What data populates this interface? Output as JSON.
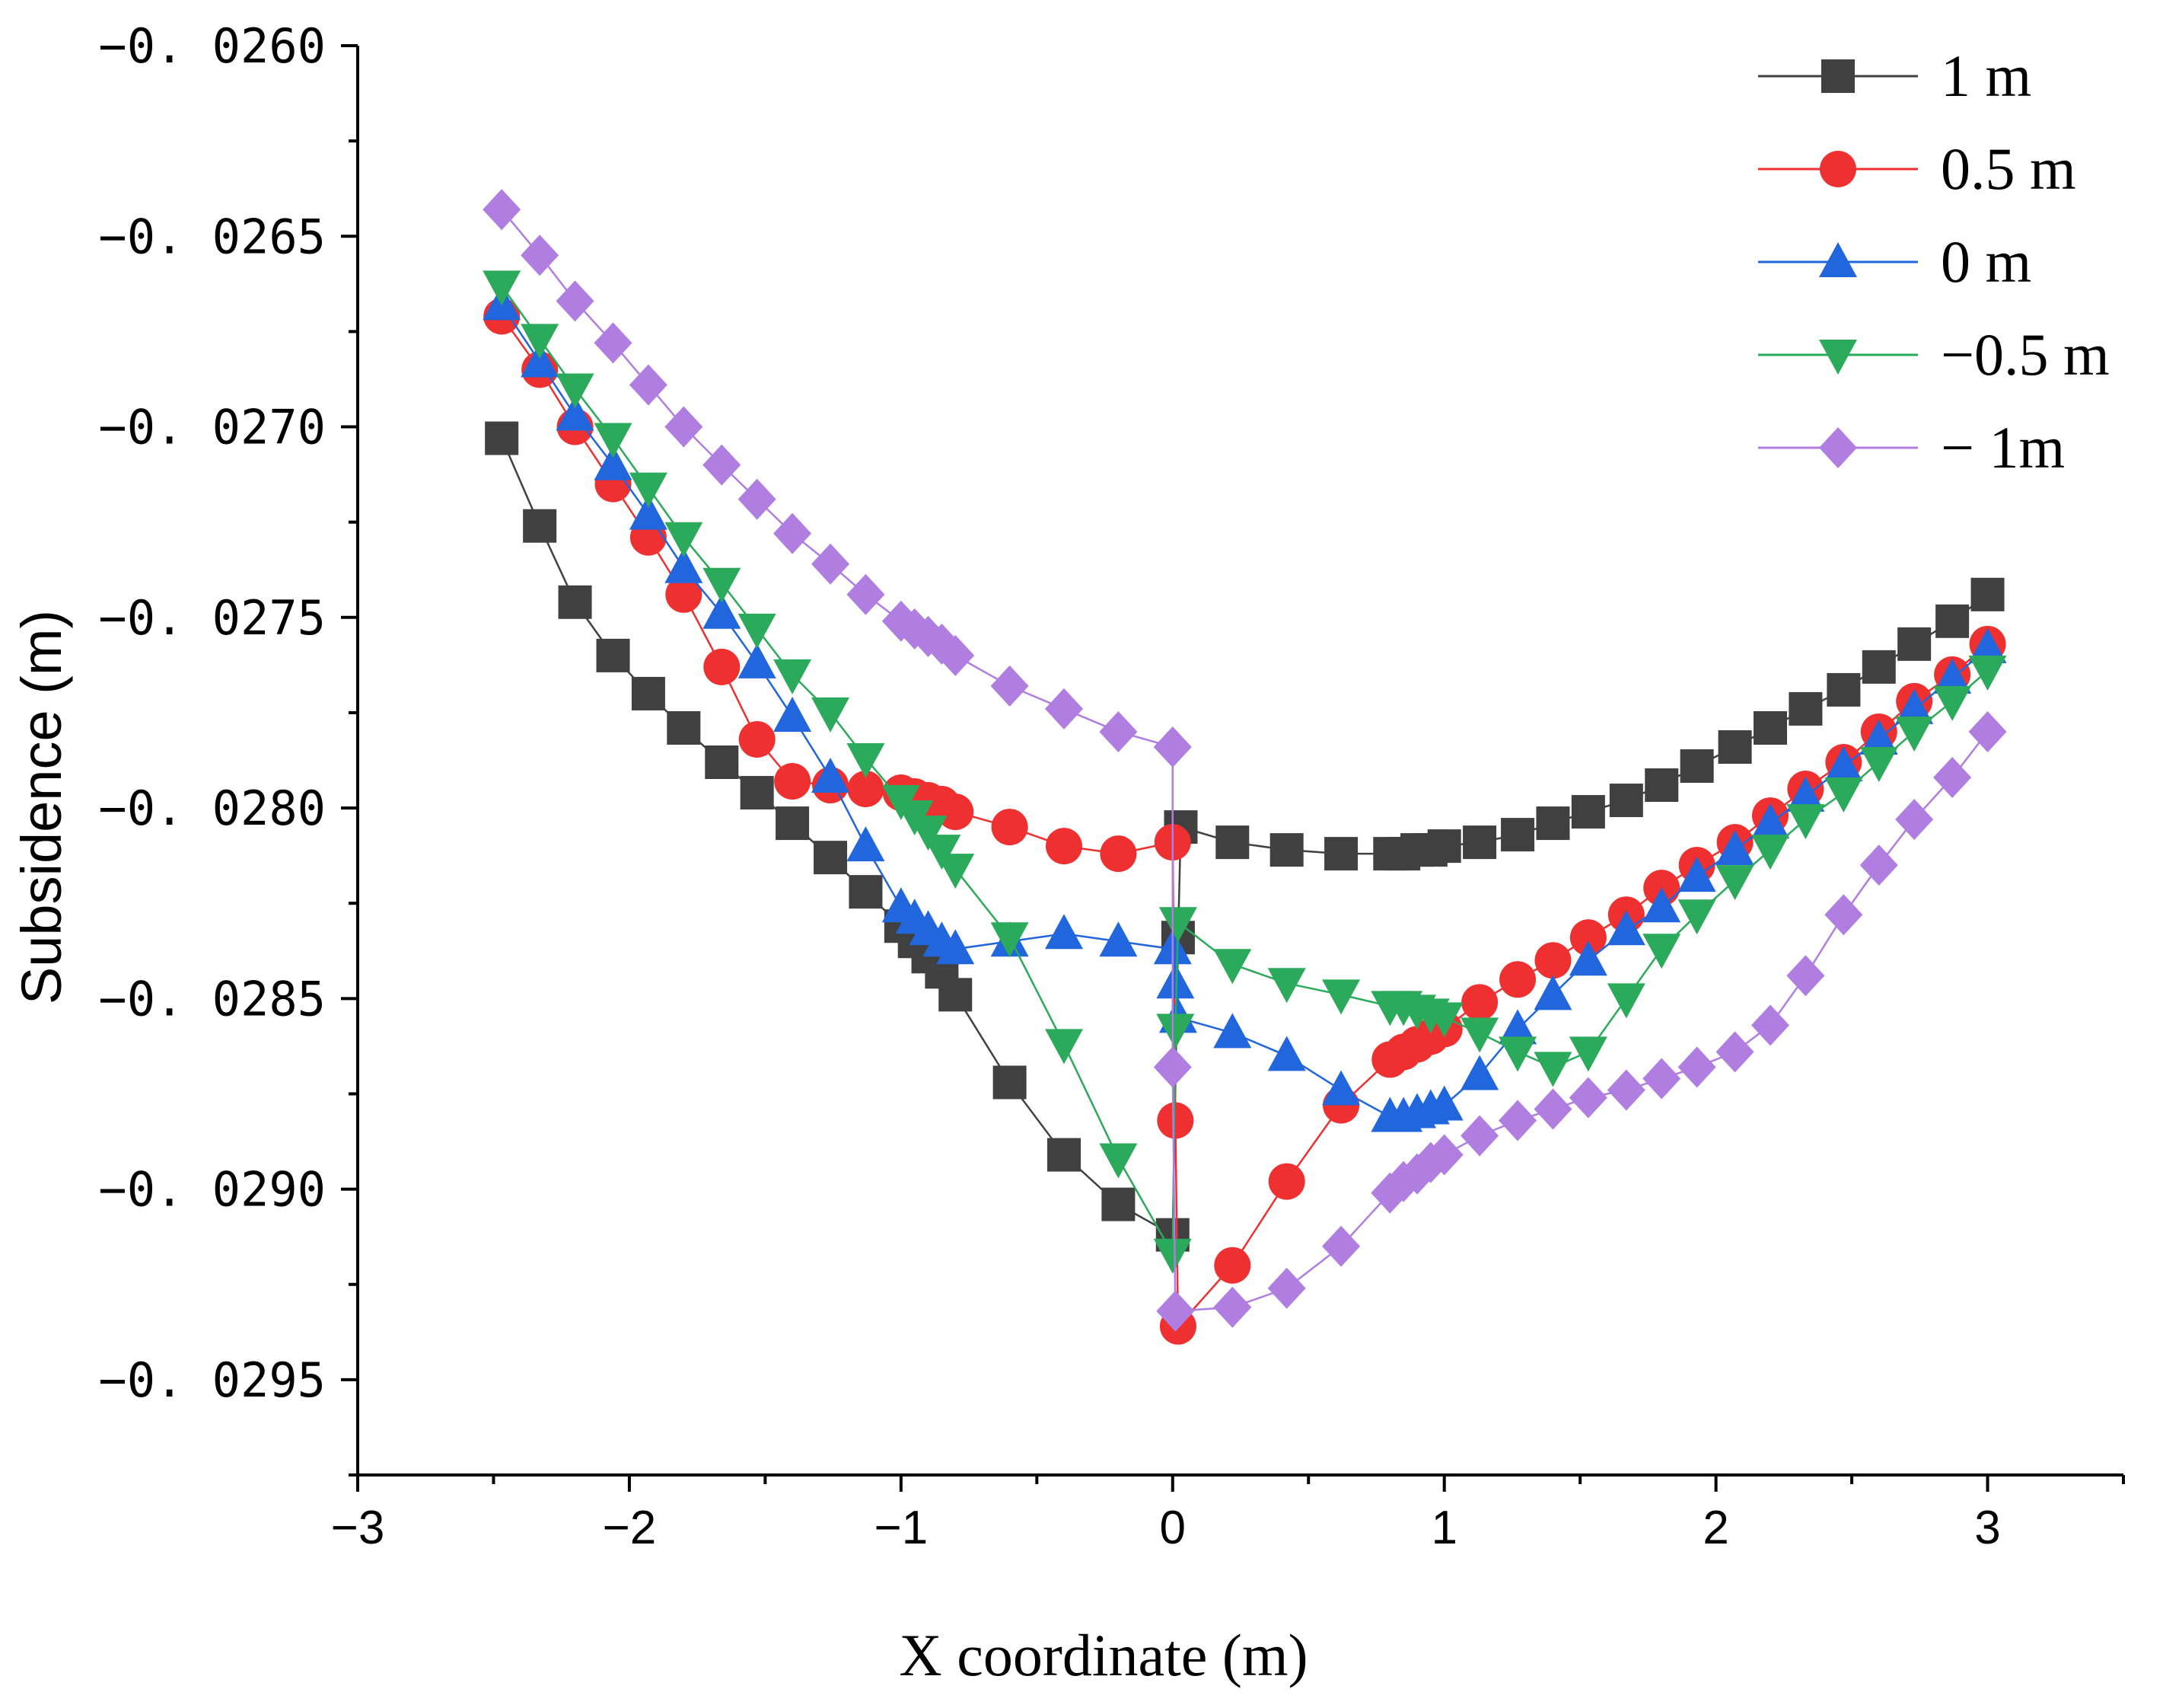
{
  "chart_data": {
    "type": "line",
    "title": "",
    "xlabel": "X coordinate (m)",
    "ylabel": "Subsidence (m)",
    "xlim": [
      -3,
      3.5
    ],
    "ylim": [
      -0.02975,
      -0.026
    ],
    "x_ticks": [
      -3,
      -2,
      -1,
      0,
      1,
      2,
      3
    ],
    "x_tick_labels": [
      "−3",
      "−2",
      "−1",
      "0",
      "1",
      "2",
      "3"
    ],
    "y_ticks": [
      -0.026,
      -0.0265,
      -0.027,
      -0.0275,
      -0.028,
      -0.0285,
      -0.029,
      -0.0295
    ],
    "y_tick_labels": [
      "−0. 0260",
      "−0. 0265",
      "−0. 0270",
      "−0. 0275",
      "−0. 0280",
      "−0. 0285",
      "−0. 0290",
      "−0. 0295"
    ],
    "grid": false,
    "legend_position": "top-right",
    "series": [
      {
        "name": "1 m",
        "color": "#404040",
        "marker": "square",
        "points": [
          [
            -2.47,
            -0.02703
          ],
          [
            -2.33,
            -0.02726
          ],
          [
            -2.2,
            -0.02746
          ],
          [
            -2.06,
            -0.0276
          ],
          [
            -1.93,
            -0.0277
          ],
          [
            -1.8,
            -0.02779
          ],
          [
            -1.66,
            -0.02788
          ],
          [
            -1.53,
            -0.02796
          ],
          [
            -1.4,
            -0.02804
          ],
          [
            -1.26,
            -0.02813
          ],
          [
            -1.13,
            -0.02822
          ],
          [
            -1.0,
            -0.02831
          ],
          [
            -0.95,
            -0.02835
          ],
          [
            -0.9,
            -0.02839
          ],
          [
            -0.85,
            -0.02843
          ],
          [
            -0.8,
            -0.02849
          ],
          [
            -0.6,
            -0.02872
          ],
          [
            -0.4,
            -0.02891
          ],
          [
            -0.2,
            -0.02904
          ],
          [
            0.0,
            -0.02912
          ],
          [
            0.02,
            -0.02834
          ],
          [
            0.03,
            -0.02805
          ],
          [
            0.22,
            -0.02809
          ],
          [
            0.42,
            -0.02811
          ],
          [
            0.62,
            -0.02812
          ],
          [
            0.8,
            -0.02812
          ],
          [
            0.85,
            -0.02812
          ],
          [
            0.9,
            -0.02811
          ],
          [
            0.95,
            -0.02811
          ],
          [
            1.0,
            -0.0281
          ],
          [
            1.13,
            -0.02809
          ],
          [
            1.27,
            -0.02807
          ],
          [
            1.4,
            -0.02804
          ],
          [
            1.53,
            -0.02801
          ],
          [
            1.67,
            -0.02798
          ],
          [
            1.8,
            -0.02794
          ],
          [
            1.93,
            -0.02789
          ],
          [
            2.07,
            -0.02784
          ],
          [
            2.2,
            -0.02779
          ],
          [
            2.33,
            -0.02774
          ],
          [
            2.47,
            -0.02769
          ],
          [
            2.6,
            -0.02763
          ],
          [
            2.73,
            -0.02757
          ],
          [
            2.87,
            -0.02751
          ],
          [
            3.0,
            -0.02744
          ]
        ]
      },
      {
        "name": "0.5 m",
        "color": "#ee3030",
        "marker": "circle",
        "points": [
          [
            -2.47,
            -0.02671
          ],
          [
            -2.33,
            -0.02685
          ],
          [
            -2.2,
            -0.027
          ],
          [
            -2.06,
            -0.02715
          ],
          [
            -1.93,
            -0.02729
          ],
          [
            -1.8,
            -0.02744
          ],
          [
            -1.66,
            -0.02763
          ],
          [
            -1.53,
            -0.02782
          ],
          [
            -1.4,
            -0.02793
          ],
          [
            -1.26,
            -0.02794
          ],
          [
            -1.13,
            -0.02795
          ],
          [
            -1.0,
            -0.02796
          ],
          [
            -0.95,
            -0.02797
          ],
          [
            -0.9,
            -0.02798
          ],
          [
            -0.85,
            -0.02799
          ],
          [
            -0.8,
            -0.02801
          ],
          [
            -0.6,
            -0.02805
          ],
          [
            -0.4,
            -0.0281
          ],
          [
            -0.2,
            -0.02812
          ],
          [
            0.0,
            -0.02809
          ],
          [
            0.01,
            -0.02882
          ],
          [
            0.02,
            -0.02936
          ],
          [
            0.22,
            -0.0292
          ],
          [
            0.42,
            -0.02898
          ],
          [
            0.62,
            -0.02878
          ],
          [
            0.8,
            -0.02866
          ],
          [
            0.85,
            -0.02864
          ],
          [
            0.9,
            -0.02862
          ],
          [
            0.95,
            -0.0286
          ],
          [
            1.0,
            -0.02858
          ],
          [
            1.13,
            -0.02851
          ],
          [
            1.27,
            -0.02845
          ],
          [
            1.4,
            -0.0284
          ],
          [
            1.53,
            -0.02834
          ],
          [
            1.67,
            -0.02828
          ],
          [
            1.8,
            -0.02821
          ],
          [
            1.93,
            -0.02815
          ],
          [
            2.07,
            -0.02809
          ],
          [
            2.2,
            -0.02802
          ],
          [
            2.33,
            -0.02795
          ],
          [
            2.47,
            -0.02788
          ],
          [
            2.6,
            -0.0278
          ],
          [
            2.73,
            -0.02772
          ],
          [
            2.87,
            -0.02765
          ],
          [
            3.0,
            -0.02757
          ]
        ]
      },
      {
        "name": "0 m",
        "color": "#2266dd",
        "marker": "triangle-up",
        "points": [
          [
            -2.47,
            -0.02668
          ],
          [
            -2.33,
            -0.02683
          ],
          [
            -2.2,
            -0.02697
          ],
          [
            -2.06,
            -0.0271
          ],
          [
            -1.93,
            -0.02723
          ],
          [
            -1.8,
            -0.02737
          ],
          [
            -1.66,
            -0.02749
          ],
          [
            -1.53,
            -0.02762
          ],
          [
            -1.4,
            -0.02776
          ],
          [
            -1.26,
            -0.02792
          ],
          [
            -1.13,
            -0.0281
          ],
          [
            -1.0,
            -0.02826
          ],
          [
            -0.95,
            -0.02829
          ],
          [
            -0.9,
            -0.02832
          ],
          [
            -0.85,
            -0.02835
          ],
          [
            -0.8,
            -0.02837
          ],
          [
            -0.6,
            -0.02835
          ],
          [
            -0.4,
            -0.02833
          ],
          [
            -0.2,
            -0.02835
          ],
          [
            0.0,
            -0.02837
          ],
          [
            0.01,
            -0.02846
          ],
          [
            0.02,
            -0.02855
          ],
          [
            0.22,
            -0.02859
          ],
          [
            0.42,
            -0.02865
          ],
          [
            0.62,
            -0.02874
          ],
          [
            0.8,
            -0.02881
          ],
          [
            0.85,
            -0.02881
          ],
          [
            0.9,
            -0.0288
          ],
          [
            0.95,
            -0.02879
          ],
          [
            1.0,
            -0.02878
          ],
          [
            1.13,
            -0.0287
          ],
          [
            1.27,
            -0.02858
          ],
          [
            1.4,
            -0.02849
          ],
          [
            1.53,
            -0.0284
          ],
          [
            1.67,
            -0.02832
          ],
          [
            1.8,
            -0.02826
          ],
          [
            1.93,
            -0.02818
          ],
          [
            2.07,
            -0.02811
          ],
          [
            2.2,
            -0.02804
          ],
          [
            2.33,
            -0.02797
          ],
          [
            2.47,
            -0.02789
          ],
          [
            2.6,
            -0.02782
          ],
          [
            2.73,
            -0.02774
          ],
          [
            2.87,
            -0.02766
          ],
          [
            3.0,
            -0.02758
          ]
        ]
      },
      {
        "name": "−0.5 m",
        "color": "#2aaa5a",
        "marker": "triangle-down",
        "points": [
          [
            -2.47,
            -0.02663
          ],
          [
            -2.33,
            -0.02677
          ],
          [
            -2.2,
            -0.0269
          ],
          [
            -2.06,
            -0.02703
          ],
          [
            -1.93,
            -0.02716
          ],
          [
            -1.8,
            -0.02729
          ],
          [
            -1.66,
            -0.02741
          ],
          [
            -1.53,
            -0.02753
          ],
          [
            -1.4,
            -0.02765
          ],
          [
            -1.26,
            -0.02775
          ],
          [
            -1.13,
            -0.02787
          ],
          [
            -1.0,
            -0.02798
          ],
          [
            -0.95,
            -0.02802
          ],
          [
            -0.9,
            -0.02806
          ],
          [
            -0.85,
            -0.02811
          ],
          [
            -0.8,
            -0.02816
          ],
          [
            -0.6,
            -0.02834
          ],
          [
            -0.4,
            -0.02862
          ],
          [
            -0.2,
            -0.02892
          ],
          [
            0.0,
            -0.02917
          ],
          [
            0.01,
            -0.02858
          ],
          [
            0.02,
            -0.0283
          ],
          [
            0.22,
            -0.02841
          ],
          [
            0.42,
            -0.02846
          ],
          [
            0.62,
            -0.02849
          ],
          [
            0.8,
            -0.02852
          ],
          [
            0.85,
            -0.02852
          ],
          [
            0.9,
            -0.02853
          ],
          [
            0.95,
            -0.02854
          ],
          [
            1.0,
            -0.02855
          ],
          [
            1.13,
            -0.02859
          ],
          [
            1.27,
            -0.02864
          ],
          [
            1.4,
            -0.02868
          ],
          [
            1.53,
            -0.02864
          ],
          [
            1.67,
            -0.0285
          ],
          [
            1.8,
            -0.02837
          ],
          [
            1.93,
            -0.02828
          ],
          [
            2.07,
            -0.02819
          ],
          [
            2.2,
            -0.02811
          ],
          [
            2.33,
            -0.02803
          ],
          [
            2.47,
            -0.02796
          ],
          [
            2.6,
            -0.02788
          ],
          [
            2.73,
            -0.0278
          ],
          [
            2.87,
            -0.02772
          ],
          [
            3.0,
            -0.02764
          ]
        ]
      },
      {
        "name": "− 1m",
        "color": "#b07ee0",
        "marker": "diamond",
        "points": [
          [
            -2.47,
            -0.02643
          ],
          [
            -2.33,
            -0.02655
          ],
          [
            -2.2,
            -0.02667
          ],
          [
            -2.06,
            -0.02678
          ],
          [
            -1.93,
            -0.02689
          ],
          [
            -1.8,
            -0.027
          ],
          [
            -1.66,
            -0.0271
          ],
          [
            -1.53,
            -0.02719
          ],
          [
            -1.4,
            -0.02728
          ],
          [
            -1.26,
            -0.02736
          ],
          [
            -1.13,
            -0.02744
          ],
          [
            -1.0,
            -0.02751
          ],
          [
            -0.95,
            -0.02753
          ],
          [
            -0.9,
            -0.02755
          ],
          [
            -0.85,
            -0.02757
          ],
          [
            -0.8,
            -0.0276
          ],
          [
            -0.6,
            -0.02768
          ],
          [
            -0.4,
            -0.02774
          ],
          [
            -0.2,
            -0.0278
          ],
          [
            0.0,
            -0.02784
          ],
          [
            0.0,
            -0.02868
          ],
          [
            0.01,
            -0.02932
          ],
          [
            0.22,
            -0.02931
          ],
          [
            0.42,
            -0.02926
          ],
          [
            0.62,
            -0.02915
          ],
          [
            0.8,
            -0.02901
          ],
          [
            0.85,
            -0.02898
          ],
          [
            0.9,
            -0.02896
          ],
          [
            0.95,
            -0.02893
          ],
          [
            1.0,
            -0.02891
          ],
          [
            1.13,
            -0.02886
          ],
          [
            1.27,
            -0.02882
          ],
          [
            1.4,
            -0.02879
          ],
          [
            1.53,
            -0.02876
          ],
          [
            1.67,
            -0.02874
          ],
          [
            1.8,
            -0.02871
          ],
          [
            1.93,
            -0.02868
          ],
          [
            2.07,
            -0.02864
          ],
          [
            2.2,
            -0.02857
          ],
          [
            2.33,
            -0.02844
          ],
          [
            2.47,
            -0.02828
          ],
          [
            2.6,
            -0.02815
          ],
          [
            2.73,
            -0.02803
          ],
          [
            2.87,
            -0.02792
          ],
          [
            3.0,
            -0.0278
          ]
        ]
      }
    ]
  }
}
